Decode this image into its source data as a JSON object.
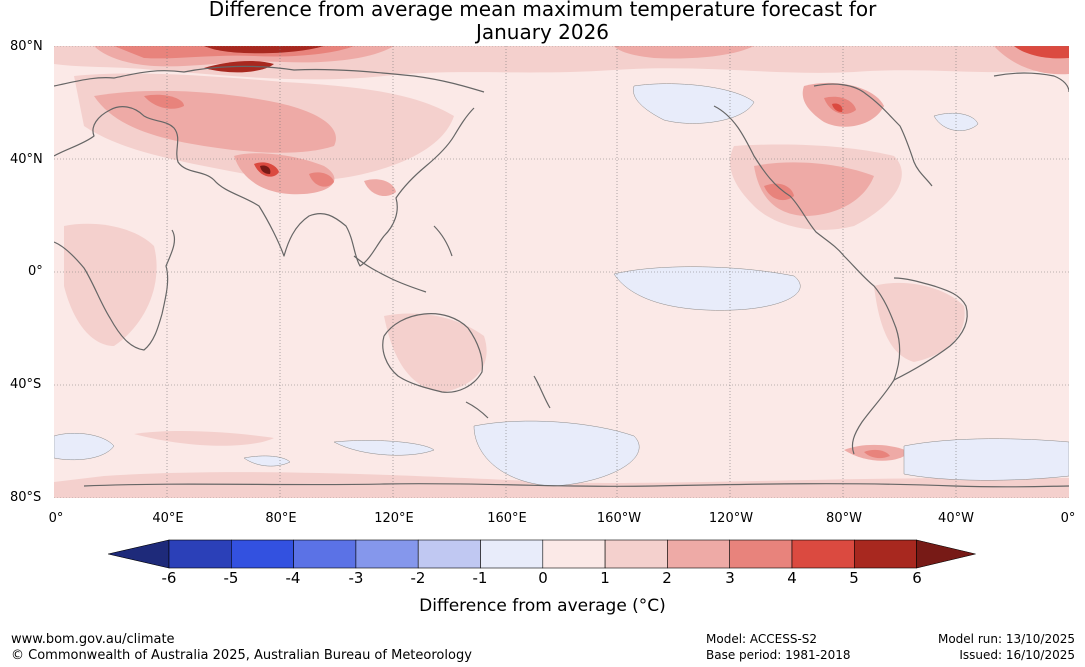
{
  "title": {
    "line1": "Difference from average mean maximum temperature forecast for",
    "line2": "January 2026"
  },
  "map": {
    "lat_labels": [
      "80°N",
      "40°N",
      "0°",
      "40°S",
      "80°S"
    ],
    "lon_labels": [
      "0°",
      "40°E",
      "80°E",
      "120°E",
      "160°E",
      "160°W",
      "120°W",
      "80°W",
      "40°W",
      "0°"
    ]
  },
  "colorbar": {
    "tick_labels": [
      "-6",
      "-5",
      "-4",
      "-3",
      "-2",
      "-1",
      "0",
      "1",
      "2",
      "3",
      "4",
      "5",
      "6"
    ],
    "colors": [
      "#1e2a7a",
      "#2b40b8",
      "#3351e0",
      "#5b72e6",
      "#8597ec",
      "#c0c8f2",
      "#e8ecfa",
      "#fbe9e7",
      "#f4d0cd",
      "#eeaaa6",
      "#e8837c",
      "#db4a40",
      "#a8281f",
      "#771a16"
    ],
    "title": "Difference from average (°C)"
  },
  "footer": {
    "website": "www.bom.gov.au/climate",
    "copyright": "© Commonwealth of Australia 2025, Australian Bureau of Meteorology",
    "model": "Model: ACCESS-S2",
    "base_period": "Base period: 1981-2018",
    "model_run": "Model run: 13/10/2025",
    "issued": "Issued: 16/10/2025"
  }
}
